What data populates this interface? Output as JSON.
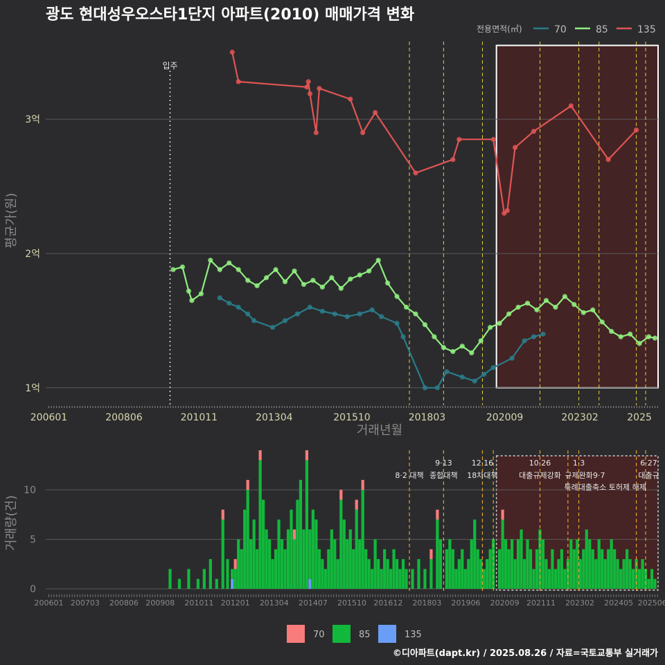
{
  "chart_data": [
    {
      "type": "line",
      "title": "광도 현대성우오스타1단지 아파트(2010) 매매가격 변화",
      "xlabel": "거래년월",
      "ylabel": "평균가(원)",
      "x_ticks": [
        "200601",
        "200806",
        "201011",
        "201304",
        "201510",
        "201803",
        "202009",
        "202302",
        "2025"
      ],
      "y_ticks": [
        {
          "value": 1,
          "label": "1억"
        },
        {
          "value": 2,
          "label": "2억"
        },
        {
          "value": 3,
          "label": "3억"
        }
      ],
      "ylim": [
        0.87,
        3.62
      ],
      "xlim": [
        2005.9,
        2025.6
      ],
      "legend_title": "전용면적(㎡)",
      "legend_position": "top-right",
      "grid": true,
      "colors": {
        "70": "#2a7d8a",
        "85": "#90ee80",
        "135": "#e05555"
      },
      "event_label": "입주",
      "event_x": 2009.9,
      "highlight_x": [
        2020.4,
        2025.6
      ],
      "highlight_y": [
        1.0,
        3.55
      ],
      "policy_lines_x": [
        2017.6,
        2018.7,
        2019.95,
        2021.8,
        2023.05,
        2023.7,
        2024.9,
        2025.2
      ],
      "series": [
        {
          "name": "135",
          "points": [
            [
              2011.9,
              3.5
            ],
            [
              2012.1,
              3.28
            ],
            [
              2014.3,
              3.24
            ],
            [
              2014.35,
              3.28
            ],
            [
              2014.4,
              3.19
            ],
            [
              2014.6,
              2.9
            ],
            [
              2014.7,
              3.23
            ],
            [
              2015.7,
              3.15
            ],
            [
              2016.1,
              2.9
            ],
            [
              2016.5,
              3.05
            ],
            [
              2017.8,
              2.6
            ],
            [
              2019.0,
              2.7
            ],
            [
              2019.2,
              2.85
            ],
            [
              2020.3,
              2.85
            ],
            [
              2020.65,
              2.3
            ],
            [
              2020.75,
              2.32
            ],
            [
              2021.0,
              2.79
            ],
            [
              2021.6,
              2.91
            ],
            [
              2022.8,
              3.1
            ],
            [
              2024.0,
              2.7
            ],
            [
              2024.9,
              2.92
            ]
          ]
        },
        {
          "name": "85",
          "points": [
            [
              2010.0,
              1.88
            ],
            [
              2010.3,
              1.9
            ],
            [
              2010.5,
              1.72
            ],
            [
              2010.6,
              1.65
            ],
            [
              2010.9,
              1.7
            ],
            [
              2011.2,
              1.95
            ],
            [
              2011.5,
              1.88
            ],
            [
              2011.8,
              1.93
            ],
            [
              2012.1,
              1.88
            ],
            [
              2012.4,
              1.8
            ],
            [
              2012.7,
              1.76
            ],
            [
              2013.0,
              1.82
            ],
            [
              2013.3,
              1.88
            ],
            [
              2013.6,
              1.79
            ],
            [
              2013.9,
              1.87
            ],
            [
              2014.2,
              1.77
            ],
            [
              2014.5,
              1.8
            ],
            [
              2014.8,
              1.75
            ],
            [
              2015.1,
              1.82
            ],
            [
              2015.4,
              1.74
            ],
            [
              2015.7,
              1.81
            ],
            [
              2016.0,
              1.84
            ],
            [
              2016.3,
              1.87
            ],
            [
              2016.6,
              1.95
            ],
            [
              2016.9,
              1.78
            ],
            [
              2017.2,
              1.68
            ],
            [
              2017.5,
              1.6
            ],
            [
              2017.8,
              1.55
            ],
            [
              2018.1,
              1.47
            ],
            [
              2018.4,
              1.38
            ],
            [
              2018.7,
              1.3
            ],
            [
              2019.0,
              1.27
            ],
            [
              2019.3,
              1.31
            ],
            [
              2019.6,
              1.26
            ],
            [
              2019.9,
              1.35
            ],
            [
              2020.2,
              1.45
            ],
            [
              2020.5,
              1.48
            ],
            [
              2020.8,
              1.55
            ],
            [
              2021.1,
              1.6
            ],
            [
              2021.4,
              1.63
            ],
            [
              2021.7,
              1.58
            ],
            [
              2022.0,
              1.65
            ],
            [
              2022.3,
              1.6
            ],
            [
              2022.6,
              1.68
            ],
            [
              2022.9,
              1.62
            ],
            [
              2023.2,
              1.56
            ],
            [
              2023.5,
              1.58
            ],
            [
              2023.8,
              1.49
            ],
            [
              2024.1,
              1.42
            ],
            [
              2024.4,
              1.38
            ],
            [
              2024.7,
              1.4
            ],
            [
              2025.0,
              1.33
            ],
            [
              2025.3,
              1.38
            ],
            [
              2025.5,
              1.37
            ]
          ]
        },
        {
          "name": "70",
          "points": [
            [
              2011.5,
              1.67
            ],
            [
              2011.8,
              1.63
            ],
            [
              2012.1,
              1.6
            ],
            [
              2012.4,
              1.55
            ],
            [
              2012.6,
              1.5
            ],
            [
              2013.2,
              1.45
            ],
            [
              2013.6,
              1.5
            ],
            [
              2014.0,
              1.55
            ],
            [
              2014.4,
              1.6
            ],
            [
              2014.8,
              1.57
            ],
            [
              2015.2,
              1.55
            ],
            [
              2015.6,
              1.53
            ],
            [
              2016.0,
              1.55
            ],
            [
              2016.4,
              1.58
            ],
            [
              2016.7,
              1.53
            ],
            [
              2017.2,
              1.48
            ],
            [
              2017.4,
              1.38
            ],
            [
              2018.1,
              1.0
            ],
            [
              2018.5,
              1.0
            ],
            [
              2018.8,
              1.12
            ],
            [
              2019.3,
              1.08
            ],
            [
              2019.7,
              1.05
            ],
            [
              2020.0,
              1.1
            ],
            [
              2020.3,
              1.15
            ],
            [
              2020.9,
              1.22
            ],
            [
              2021.3,
              1.35
            ],
            [
              2021.6,
              1.38
            ],
            [
              2021.9,
              1.4
            ]
          ]
        }
      ]
    },
    {
      "type": "bar",
      "ylabel": "거래량(건)",
      "y_ticks": [
        0,
        5,
        10
      ],
      "ylim": [
        0,
        14
      ],
      "x_ticks": [
        "200601",
        "200703",
        "200806",
        "200908",
        "201011",
        "201201",
        "201304",
        "201407",
        "201510",
        "201612",
        "201803",
        "201906",
        "202009",
        "202111",
        "202302",
        "202405",
        "202506"
      ],
      "legend": [
        "70",
        "85",
        "135"
      ],
      "legend_position": "bottom",
      "colors": {
        "70": "#f87c7c",
        "85": "#12b83c",
        "135": "#6a9df5"
      },
      "policy_lines_x": [
        2017.6,
        2018.7,
        2019.95,
        2020.3,
        2021.8,
        2022.7,
        2023.05,
        2024.9,
        2025.2
      ],
      "highlight_x": [
        2020.4,
        2025.6
      ],
      "annotations": [
        {
          "label": "8·2 대책",
          "x": 2017.6,
          "row": 1
        },
        {
          "label": "9·13",
          "x": 2018.7,
          "row": 0
        },
        {
          "label": "종합대책",
          "x": 2018.7,
          "row": 1
        },
        {
          "label": "12·16",
          "x": 2019.95,
          "row": 0
        },
        {
          "label": "18차대책",
          "x": 2019.95,
          "row": 1
        },
        {
          "label": "10·26",
          "x": 2021.8,
          "row": 0
        },
        {
          "label": "대출규제강화",
          "x": 2021.8,
          "row": 1
        },
        {
          "label": "1·3",
          "x": 2023.05,
          "row": 0
        },
        {
          "label": "규제완화",
          "x": 2023.05,
          "row": 1
        },
        {
          "label": "9·7",
          "x": 2023.7,
          "row": 1
        },
        {
          "label": "특례대출축소 토허제 해제",
          "x": 2023.9,
          "row": 2
        },
        {
          "label": "6·27",
          "x": 2025.3,
          "row": 0
        },
        {
          "label": "대출규",
          "x": 2025.3,
          "row": 1
        }
      ],
      "bars": [
        {
          "x": 2009.9,
          "v85": 2
        },
        {
          "x": 2010.2,
          "v85": 1
        },
        {
          "x": 2010.5,
          "v85": 2
        },
        {
          "x": 2010.8,
          "v85": 1
        },
        {
          "x": 2011.0,
          "v85": 2
        },
        {
          "x": 2011.2,
          "v85": 3
        },
        {
          "x": 2011.4,
          "v85": 1
        },
        {
          "x": 2011.6,
          "v85": 7,
          "v70": 1
        },
        {
          "x": 2011.75,
          "v85": 3
        },
        {
          "x": 2011.9,
          "v85": 1,
          "v135": 1
        },
        {
          "x": 2012.0,
          "v85": 2,
          "v70": 1
        },
        {
          "x": 2012.1,
          "v85": 5
        },
        {
          "x": 2012.2,
          "v85": 4
        },
        {
          "x": 2012.3,
          "v85": 8
        },
        {
          "x": 2012.4,
          "v85": 10,
          "v70": 1
        },
        {
          "x": 2012.5,
          "v85": 5
        },
        {
          "x": 2012.6,
          "v85": 7
        },
        {
          "x": 2012.7,
          "v85": 4
        },
        {
          "x": 2012.8,
          "v85": 13,
          "v70": 1
        },
        {
          "x": 2012.9,
          "v85": 9
        },
        {
          "x": 2013.0,
          "v85": 6
        },
        {
          "x": 2013.1,
          "v85": 5
        },
        {
          "x": 2013.2,
          "v85": 3
        },
        {
          "x": 2013.3,
          "v85": 4
        },
        {
          "x": 2013.4,
          "v85": 7
        },
        {
          "x": 2013.5,
          "v85": 5
        },
        {
          "x": 2013.6,
          "v85": 4
        },
        {
          "x": 2013.7,
          "v85": 6
        },
        {
          "x": 2013.8,
          "v85": 8
        },
        {
          "x": 2013.9,
          "v85": 5,
          "v70": 1
        },
        {
          "x": 2014.0,
          "v85": 9
        },
        {
          "x": 2014.1,
          "v85": 11
        },
        {
          "x": 2014.2,
          "v85": 6
        },
        {
          "x": 2014.3,
          "v85": 13,
          "v70": 1
        },
        {
          "x": 2014.4,
          "v85": 5,
          "v135": 1
        },
        {
          "x": 2014.5,
          "v85": 8
        },
        {
          "x": 2014.6,
          "v85": 7
        },
        {
          "x": 2014.7,
          "v85": 4
        },
        {
          "x": 2014.8,
          "v85": 3
        },
        {
          "x": 2014.9,
          "v85": 2
        },
        {
          "x": 2015.0,
          "v85": 4
        },
        {
          "x": 2015.1,
          "v85": 6
        },
        {
          "x": 2015.2,
          "v85": 5
        },
        {
          "x": 2015.3,
          "v85": 3
        },
        {
          "x": 2015.4,
          "v85": 9,
          "v70": 1
        },
        {
          "x": 2015.5,
          "v85": 7
        },
        {
          "x": 2015.6,
          "v85": 5
        },
        {
          "x": 2015.7,
          "v85": 6
        },
        {
          "x": 2015.8,
          "v85": 4
        },
        {
          "x": 2015.9,
          "v85": 8,
          "v70": 1
        },
        {
          "x": 2016.0,
          "v85": 5
        },
        {
          "x": 2016.1,
          "v85": 10,
          "v70": 1
        },
        {
          "x": 2016.2,
          "v85": 4
        },
        {
          "x": 2016.3,
          "v85": 3
        },
        {
          "x": 2016.4,
          "v85": 2
        },
        {
          "x": 2016.5,
          "v85": 5
        },
        {
          "x": 2016.6,
          "v85": 3
        },
        {
          "x": 2016.7,
          "v85": 2
        },
        {
          "x": 2016.8,
          "v85": 4
        },
        {
          "x": 2016.9,
          "v85": 3
        },
        {
          "x": 2017.0,
          "v85": 2
        },
        {
          "x": 2017.1,
          "v85": 4
        },
        {
          "x": 2017.2,
          "v85": 3
        },
        {
          "x": 2017.3,
          "v85": 2
        },
        {
          "x": 2017.4,
          "v85": 3
        },
        {
          "x": 2017.5,
          "v85": 2
        },
        {
          "x": 2017.7,
          "v85": 2
        },
        {
          "x": 2017.9,
          "v85": 3
        },
        {
          "x": 2018.1,
          "v85": 2
        },
        {
          "x": 2018.3,
          "v85": 3,
          "v70": 1
        },
        {
          "x": 2018.5,
          "v85": 7,
          "v70": 1
        },
        {
          "x": 2018.6,
          "v85": 5
        },
        {
          "x": 2018.8,
          "v85": 4
        },
        {
          "x": 2018.9,
          "v85": 5
        },
        {
          "x": 2019.0,
          "v85": 4
        },
        {
          "x": 2019.1,
          "v85": 2
        },
        {
          "x": 2019.2,
          "v85": 3
        },
        {
          "x": 2019.3,
          "v85": 4
        },
        {
          "x": 2019.4,
          "v85": 2
        },
        {
          "x": 2019.5,
          "v85": 3
        },
        {
          "x": 2019.6,
          "v85": 5
        },
        {
          "x": 2019.7,
          "v85": 7
        },
        {
          "x": 2019.8,
          "v85": 4
        },
        {
          "x": 2019.9,
          "v85": 3
        },
        {
          "x": 2020.0,
          "v85": 2
        },
        {
          "x": 2020.1,
          "v85": 3
        },
        {
          "x": 2020.2,
          "v85": 4
        },
        {
          "x": 2020.3,
          "v85": 5
        },
        {
          "x": 2020.5,
          "v85": 4
        },
        {
          "x": 2020.6,
          "v85": 7,
          "v70": 1
        },
        {
          "x": 2020.7,
          "v85": 5
        },
        {
          "x": 2020.8,
          "v85": 4
        },
        {
          "x": 2020.9,
          "v85": 5
        },
        {
          "x": 2021.0,
          "v85": 3
        },
        {
          "x": 2021.1,
          "v85": 5
        },
        {
          "x": 2021.2,
          "v85": 6
        },
        {
          "x": 2021.3,
          "v85": 3
        },
        {
          "x": 2021.4,
          "v85": 5
        },
        {
          "x": 2021.5,
          "v85": 4
        },
        {
          "x": 2021.6,
          "v85": 2
        },
        {
          "x": 2021.7,
          "v85": 4
        },
        {
          "x": 2021.8,
          "v85": 6
        },
        {
          "x": 2021.9,
          "v85": 5
        },
        {
          "x": 2022.0,
          "v85": 3
        },
        {
          "x": 2022.1,
          "v85": 2
        },
        {
          "x": 2022.2,
          "v85": 4
        },
        {
          "x": 2022.3,
          "v85": 2
        },
        {
          "x": 2022.4,
          "v85": 3
        },
        {
          "x": 2022.5,
          "v85": 4
        },
        {
          "x": 2022.6,
          "v85": 2
        },
        {
          "x": 2022.7,
          "v85": 3
        },
        {
          "x": 2022.8,
          "v85": 5
        },
        {
          "x": 2022.9,
          "v85": 4
        },
        {
          "x": 2023.0,
          "v85": 5
        },
        {
          "x": 2023.1,
          "v85": 3
        },
        {
          "x": 2023.2,
          "v85": 4
        },
        {
          "x": 2023.3,
          "v85": 6
        },
        {
          "x": 2023.4,
          "v85": 5
        },
        {
          "x": 2023.5,
          "v85": 4
        },
        {
          "x": 2023.6,
          "v85": 3
        },
        {
          "x": 2023.7,
          "v85": 5
        },
        {
          "x": 2023.8,
          "v85": 4
        },
        {
          "x": 2023.9,
          "v85": 3
        },
        {
          "x": 2024.0,
          "v85": 4
        },
        {
          "x": 2024.1,
          "v85": 5
        },
        {
          "x": 2024.2,
          "v85": 4
        },
        {
          "x": 2024.3,
          "v85": 3
        },
        {
          "x": 2024.4,
          "v85": 2
        },
        {
          "x": 2024.5,
          "v85": 3
        },
        {
          "x": 2024.6,
          "v85": 4
        },
        {
          "x": 2024.7,
          "v85": 3
        },
        {
          "x": 2024.8,
          "v85": 2
        },
        {
          "x": 2024.9,
          "v85": 3
        },
        {
          "x": 2025.0,
          "v85": 2
        },
        {
          "x": 2025.1,
          "v85": 3
        },
        {
          "x": 2025.2,
          "v85": 2
        },
        {
          "x": 2025.3,
          "v85": 1
        },
        {
          "x": 2025.4,
          "v85": 2
        },
        {
          "x": 2025.5,
          "v85": 1
        }
      ]
    }
  ],
  "footer": {
    "credit": "©디아파트(dapt.kr) / 2025.08.26 / 자료=국토교통부 실거래가"
  }
}
